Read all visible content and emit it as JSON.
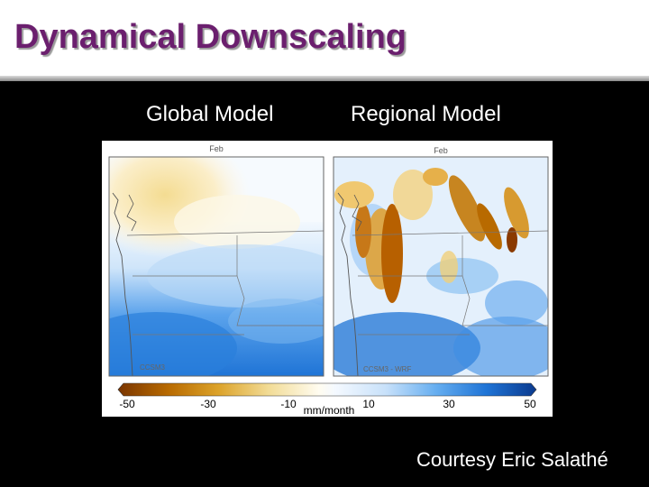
{
  "slide": {
    "title": "Dynamical Downscaling",
    "credit": "Courtesy Eric Salathé"
  },
  "panels": [
    {
      "label": "Global Model",
      "month": "Feb",
      "model": "CCSM3"
    },
    {
      "label": "Regional Model",
      "month": "Feb",
      "model": "CCSM3 - WRF"
    }
  ],
  "colorbar": {
    "unit": "mm/month",
    "ticks": [
      "-50",
      "-30",
      "-10",
      "10",
      "30",
      "50"
    ]
  },
  "colors": {
    "title": "#6b1f6e",
    "dry": "#8a3a00",
    "wet": "#0b3a8e"
  }
}
